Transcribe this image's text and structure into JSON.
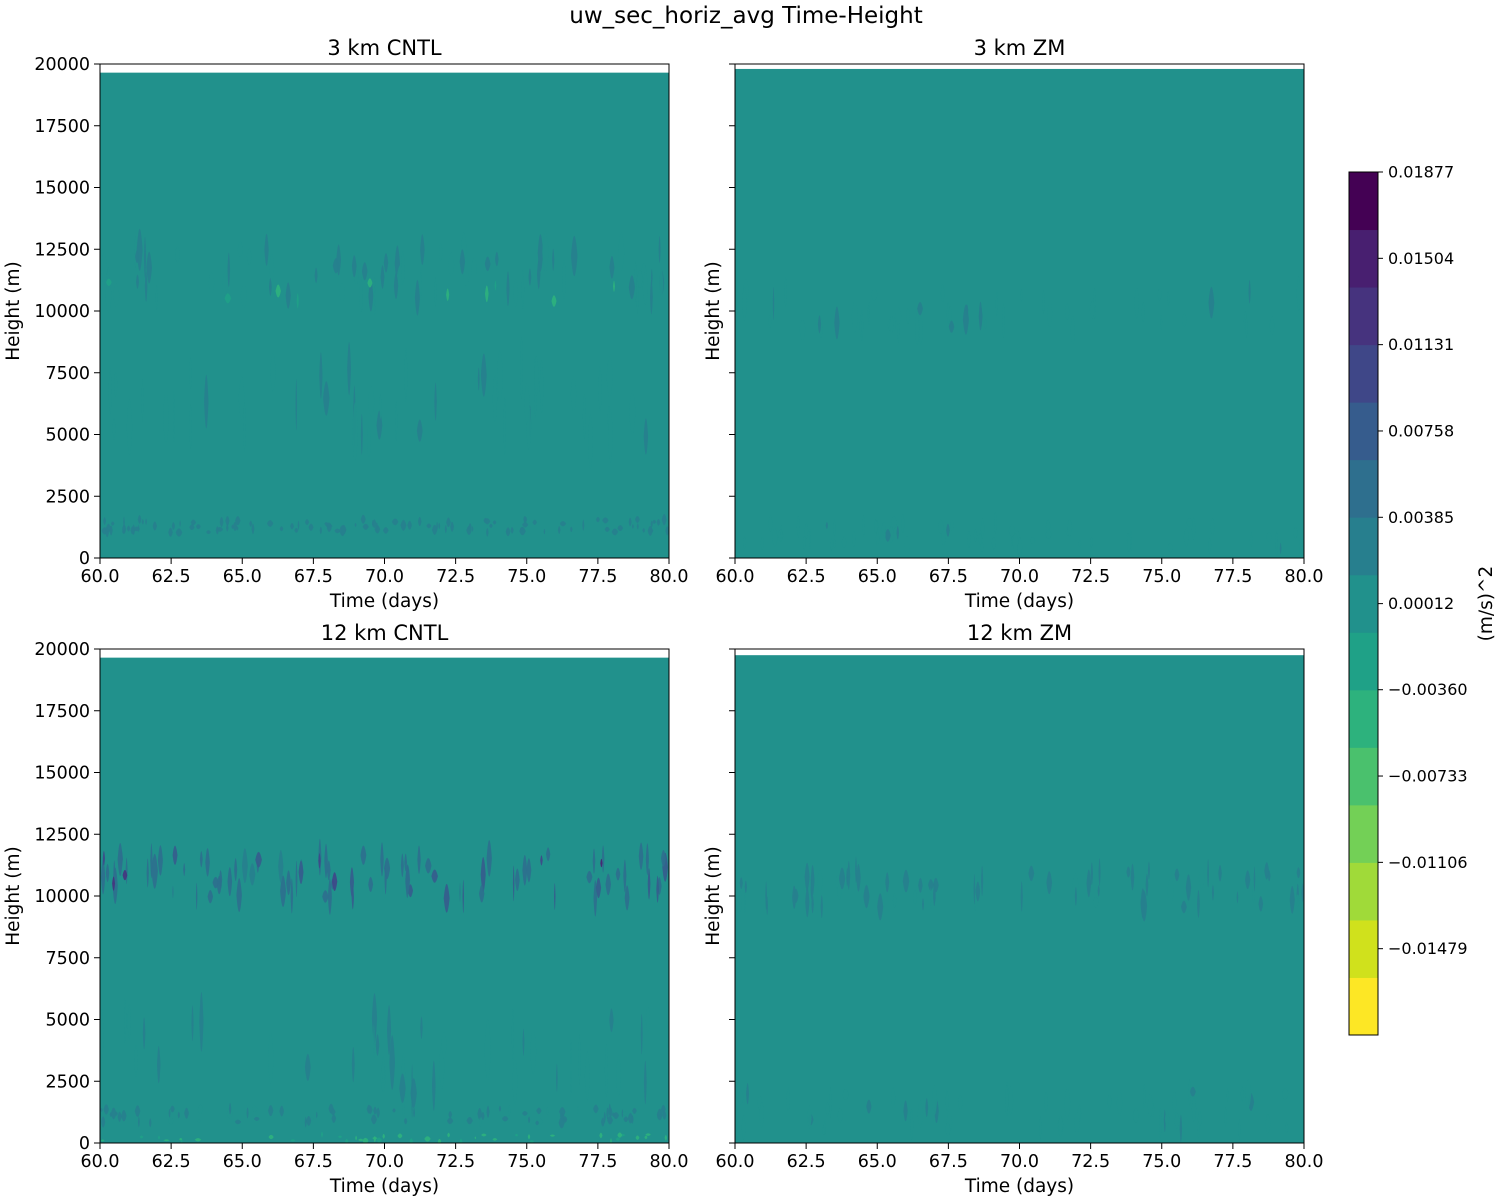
{
  "chart_data": {
    "type": "heatmap",
    "title": "uw_sec_horiz_avg Time-Height",
    "colorbar": {
      "label": "(m/s)^2",
      "tick_labels": [
        "0.01877",
        "0.01504",
        "0.01131",
        "0.00758",
        "0.00385",
        "0.00012",
        "−0.00360",
        "−0.00733",
        "−0.01106",
        "−0.01479"
      ],
      "tick_values": [
        0.01877,
        0.01504,
        0.01131,
        0.00758,
        0.00385,
        0.00012,
        -0.0036,
        -0.00733,
        -0.01106,
        -0.01479
      ],
      "range": [
        -0.01852,
        0.01877
      ],
      "levels": 20,
      "colors": [
        "#fde725",
        "#d0e11c",
        "#a0da39",
        "#73d056",
        "#4ac16d",
        "#2db27d",
        "#1fa187",
        "#21918c",
        "#277f8e",
        "#2e6f8e",
        "#365c8d",
        "#3f4788",
        "#46337e",
        "#481f70",
        "#440154"
      ]
    },
    "panels": [
      {
        "title": "3 km CNTL",
        "xlabel": "Time (days)",
        "ylabel": "Height (m)",
        "xlim": [
          60.0,
          80.0
        ],
        "ylim": [
          0,
          20000
        ],
        "x_ticks": [
          "60.0",
          "62.5",
          "65.0",
          "67.5",
          "70.0",
          "72.5",
          "75.0",
          "77.5",
          "80.0"
        ],
        "y_ticks": [
          "0",
          "2500",
          "5000",
          "7500",
          "10000",
          "12500",
          "15000",
          "17500",
          "20000"
        ],
        "show_y_tick_labels": true,
        "data_top": 19650,
        "features": [
          {
            "y_center": 11500,
            "y_half": 1700,
            "value": 0.0016,
            "density": 0.55
          },
          {
            "y_center": 6200,
            "y_half": 2500,
            "value": 0.0013,
            "density": 0.35
          },
          {
            "y_center": 1300,
            "y_half": 450,
            "value": 0.003,
            "density": 0.8
          },
          {
            "y_center": 10800,
            "y_half": 700,
            "value": -0.0045,
            "density": 0.07
          }
        ]
      },
      {
        "title": "3 km ZM",
        "xlabel": "Time (days)",
        "ylabel": "Height (m)",
        "xlim": [
          60.0,
          80.0
        ],
        "ylim": [
          0,
          20000
        ],
        "x_ticks": [
          "60.0",
          "62.5",
          "65.0",
          "67.5",
          "70.0",
          "72.5",
          "75.0",
          "77.5",
          "80.0"
        ],
        "y_ticks": [
          "0",
          "2500",
          "5000",
          "7500",
          "10000",
          "12500",
          "15000",
          "17500",
          "20000"
        ],
        "show_y_tick_labels": false,
        "data_top": 19800,
        "features": [
          {
            "y_center": 10000,
            "y_half": 1400,
            "value": 0.0013,
            "density": 0.4
          },
          {
            "y_center": 900,
            "y_half": 900,
            "value": 0.0012,
            "density": 0.5
          }
        ]
      },
      {
        "title": "12 km CNTL",
        "xlabel": "Time (days)",
        "ylabel": "Height (m)",
        "xlim": [
          60.0,
          80.0
        ],
        "ylim": [
          0,
          20000
        ],
        "x_ticks": [
          "60.0",
          "62.5",
          "65.0",
          "67.5",
          "70.0",
          "72.5",
          "75.0",
          "77.5",
          "80.0"
        ],
        "y_ticks": [
          "0",
          "2500",
          "5000",
          "7500",
          "10000",
          "12500",
          "15000",
          "17500",
          "20000"
        ],
        "show_y_tick_labels": true,
        "data_top": 19650,
        "features": [
          {
            "y_center": 10800,
            "y_half": 1500,
            "value": 0.006,
            "density": 0.6
          },
          {
            "y_center": 3500,
            "y_half": 2600,
            "value": 0.0015,
            "density": 0.3
          },
          {
            "y_center": 1100,
            "y_half": 500,
            "value": 0.002,
            "density": 0.6
          },
          {
            "y_center": 11000,
            "y_half": 900,
            "value": 0.013,
            "density": 0.05
          },
          {
            "y_center": 200,
            "y_half": 250,
            "value": -0.004,
            "density": 0.3
          }
        ]
      },
      {
        "title": "12 km ZM",
        "xlabel": "Time (days)",
        "ylabel": "Height (m)",
        "xlim": [
          60.0,
          80.0
        ],
        "ylim": [
          0,
          20000
        ],
        "x_ticks": [
          "60.0",
          "62.5",
          "65.0",
          "67.5",
          "70.0",
          "72.5",
          "75.0",
          "77.5",
          "80.0"
        ],
        "y_ticks": [
          "0",
          "2500",
          "5000",
          "7500",
          "10000",
          "12500",
          "15000",
          "17500",
          "20000"
        ],
        "show_y_tick_labels": false,
        "data_top": 19750,
        "features": [
          {
            "y_center": 10300,
            "y_half": 1300,
            "value": 0.0018,
            "density": 0.55
          },
          {
            "y_center": 1300,
            "y_half": 1300,
            "value": 0.0012,
            "density": 0.45
          }
        ]
      }
    ]
  }
}
